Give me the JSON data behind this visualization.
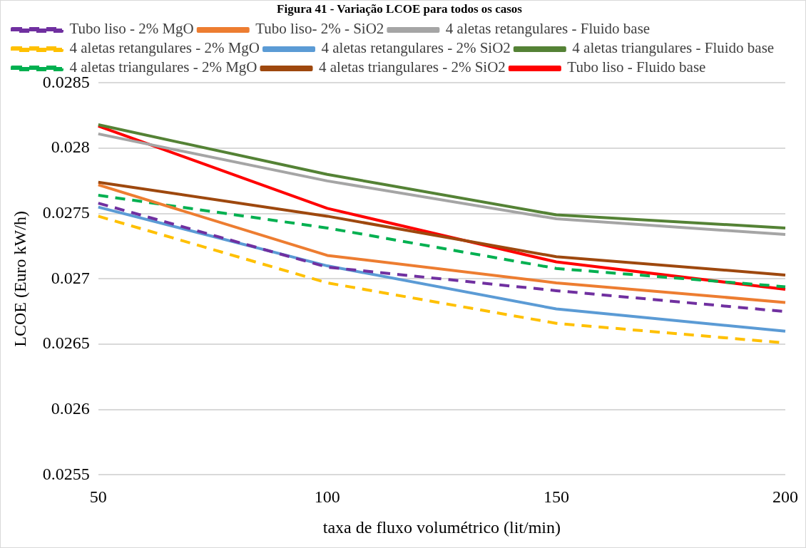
{
  "chart_data": {
    "type": "line",
    "title": "Figura 41 - Variação LCOE para todos os casos",
    "xlabel": "taxa de fluxo volumétrico (lit/min)",
    "ylabel": "LCOE (Euro kW/h)",
    "categories": [
      "50",
      "100",
      "150",
      "200"
    ],
    "ylim": [
      0.0255,
      0.0285
    ],
    "yticks": [
      0.0255,
      0.026,
      0.0265,
      0.027,
      0.0275,
      0.028,
      0.0285
    ],
    "grid": "y",
    "legend": "top",
    "marker": "none",
    "series": [
      {
        "name": "Tubo liso - 2% MgO",
        "color": "#7030a0",
        "line_style": "dashed",
        "values": [
          0.02758,
          0.02709,
          0.02691,
          0.02675
        ]
      },
      {
        "name": "Tubo liso- 2% - SiO2",
        "color": "#ed7d31",
        "line_style": "solid",
        "values": [
          0.02772,
          0.02718,
          0.02697,
          0.02682
        ]
      },
      {
        "name": "4 aletas retangulares - Fluido base",
        "color": "#a5a5a5",
        "line_style": "solid",
        "values": [
          0.02811,
          0.02775,
          0.02746,
          0.02734
        ]
      },
      {
        "name": "4 aletas retangulares - 2% MgO",
        "color": "#ffc000",
        "line_style": "dashed",
        "values": [
          0.02748,
          0.02697,
          0.02666,
          0.02651
        ]
      },
      {
        "name": "4 aletas retangulares - 2% SiO2",
        "color": "#5b9bd5",
        "line_style": "solid",
        "values": [
          0.02755,
          0.0271,
          0.02677,
          0.0266
        ]
      },
      {
        "name": "4 aletas triangulares - Fluido base",
        "color": "#548235",
        "line_style": "solid",
        "values": [
          0.02818,
          0.0278,
          0.02749,
          0.02739
        ]
      },
      {
        "name": "4 aletas triangulares - 2% MgO",
        "color": "#00b050",
        "line_style": "dashed",
        "values": [
          0.02764,
          0.02739,
          0.02708,
          0.02694
        ]
      },
      {
        "name": "4 aletas triangulares - 2% SiO2",
        "color": "#9e480e",
        "line_style": "solid",
        "values": [
          0.02774,
          0.02748,
          0.02717,
          0.02703
        ]
      },
      {
        "name": "Tubo liso - Fluido base",
        "color": "#ff0000",
        "line_style": "solid",
        "values": [
          0.02817,
          0.02754,
          0.02713,
          0.02692
        ]
      }
    ]
  }
}
